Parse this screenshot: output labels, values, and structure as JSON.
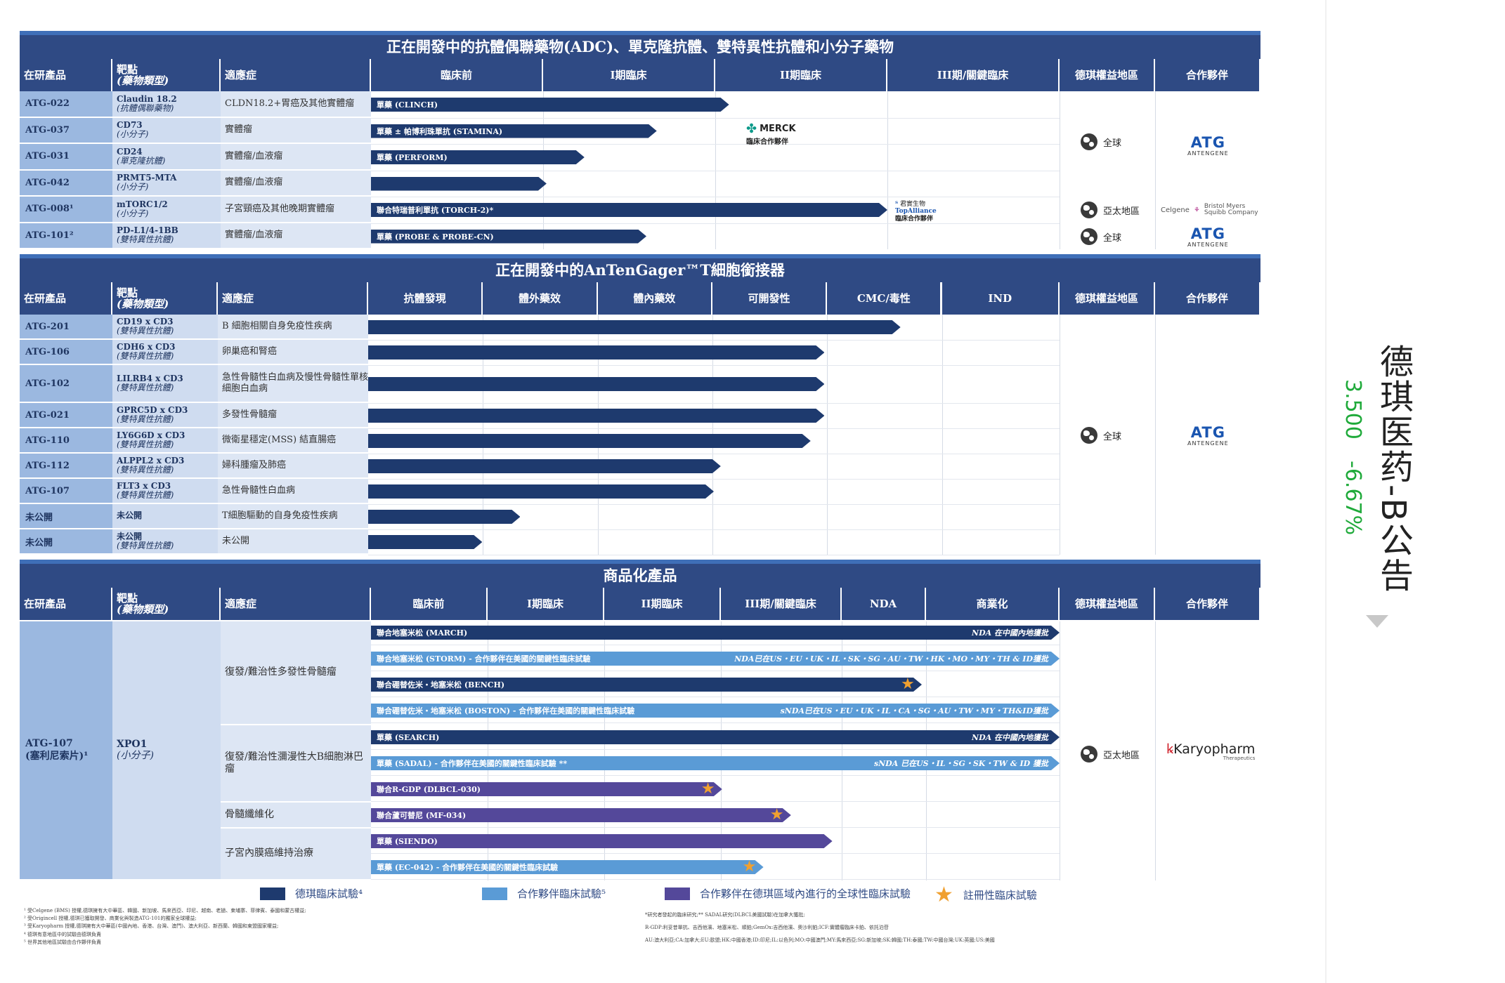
{
  "section1": {
    "title": "正在開發中的抗體偶聯藥物(ADC)、單克隆抗體、雙特異性抗體和小分子藥物",
    "headers": {
      "product": "在研產品",
      "target1": "靶點",
      "target2": "(藥物類型)",
      "indication": "適應症",
      "s1": "臨床前",
      "s2": "I期臨床",
      "s3": "II期臨床",
      "s4": "III期/關鍵臨床",
      "region": "德琪權益地區",
      "partner": "合作夥伴"
    },
    "rows": [
      {
        "id": "ATG-022",
        "t1": "Claudin 18.2",
        "t2": "(抗體偶聯藥物)",
        "ind": "CLDN18.2+胃癌及其他實體瘤",
        "bar": "單藥 (CLINCH)",
        "end": 0.52
      },
      {
        "id": "ATG-037",
        "t1": "CD73",
        "t2": "(小分子)",
        "ind": "實體瘤",
        "bar": "單藥 ± 帕博利珠單抗 (STAMINA)",
        "end": 0.415
      },
      {
        "id": "ATG-031",
        "t1": "CD24",
        "t2": "(單克隆抗體)",
        "ind": "實體瘤/血液瘤",
        "bar": "單藥 (PERFORM)",
        "end": 0.31
      },
      {
        "id": "ATG-042",
        "t1": "PRMT5-MTA",
        "t2": "(小分子)",
        "ind": "實體瘤/血液瘤",
        "bar": "",
        "end": 0.255
      },
      {
        "id": "ATG-008¹",
        "t1": "mTORC1/2",
        "t2": "(小分子)",
        "ind": "子宮頸癌及其他晚期實體瘤",
        "bar": "聯合特瑞普利單抗 (TORCH-2)*",
        "end": 0.75
      },
      {
        "id": "ATG-101²",
        "t1": "PD-L1/4-1BB",
        "t2": "(雙特異性抗體)",
        "ind": "實體瘤/血液瘤",
        "bar": "單藥 (PROBE & PROBE-CN)",
        "end": 0.4
      }
    ],
    "merck": {
      "name": "MERCK",
      "note": "臨床合作夥伴"
    },
    "topalliance": {
      "name": "君實生物",
      "sub": "TopAlliance",
      "note": "臨床合作夥伴"
    },
    "regions": [
      "全球",
      "亞太地區",
      "全球"
    ],
    "partners": {
      "antengene": "ANTENGENE",
      "celgene": "Celgene",
      "bms": "Bristol Myers Squibb Company"
    }
  },
  "section2": {
    "title": "正在開發中的AnTenGager™T細胞銜接器",
    "headers": {
      "product": "在研產品",
      "target1": "靶點",
      "target2": "(藥物類型)",
      "indication": "適應症",
      "s1": "抗體發現",
      "s2": "體外藥效",
      "s3": "體內藥效",
      "s4": "可開發性",
      "s5": "CMC/毒性",
      "s6": "IND",
      "region": "德琪權益地區",
      "partner": "合作夥伴"
    },
    "rows": [
      {
        "id": "ATG-201",
        "t1": "CD19 x CD3",
        "t2": "(雙特異性抗體)",
        "ind": "B 細胞相關自身免疫性疾病",
        "end": 0.77
      },
      {
        "id": "ATG-106",
        "t1": "CDH6 x CD3",
        "t2": "(雙特異性抗體)",
        "ind": "卵巢癌和腎癌",
        "end": 0.66
      },
      {
        "id": "ATG-102",
        "t1": "LILRB4 x CD3",
        "t2": "(雙特異性抗體)",
        "ind": "急性骨髓性白血病及慢性骨髓性單核細胞白血病",
        "end": 0.66
      },
      {
        "id": "ATG-021",
        "t1": "GPRC5D x CD3",
        "t2": "(雙特異性抗體)",
        "ind": "多發性骨髓瘤",
        "end": 0.66
      },
      {
        "id": "ATG-110",
        "t1": "LY6G6D x CD3",
        "t2": "(雙特異性抗體)",
        "ind": "微衛星穩定(MSS) 結直腸癌",
        "end": 0.64
      },
      {
        "id": "ATG-112",
        "t1": "ALPPL2 x CD3",
        "t2": "(雙特異性抗體)",
        "ind": "婦科腫瘤及肺癌",
        "end": 0.51
      },
      {
        "id": "ATG-107",
        "t1": "FLT3 x CD3",
        "t2": "(雙特異性抗體)",
        "ind": "急性骨髓性白血病",
        "end": 0.5
      },
      {
        "id": "未公開",
        "t1": "未公開",
        "t2": "",
        "ind": "T細胞驅動的自身免疫性疾病",
        "end": 0.22
      },
      {
        "id": "未公開",
        "t1": "未公開",
        "t2": "(雙特異性抗體)",
        "ind": "未公開",
        "end": 0.165
      }
    ],
    "region": "全球",
    "partner": "ANTENGENE"
  },
  "section3": {
    "title": "商品化產品",
    "headers": {
      "product": "在研產品",
      "target1": "靶點",
      "target2": "(藥物類型)",
      "indication": "適應症",
      "s1": "臨床前",
      "s2": "I期臨床",
      "s3": "II期臨床",
      "s4": "III期/關鍵臨床",
      "s5": "NDA",
      "s6": "商業化",
      "region": "德琪權益地區",
      "partner": "合作夥伴"
    },
    "product": "ATG-107",
    "product2": "(塞利尼索片)¹",
    "target": "XPO1",
    "target_type": "(小分子)",
    "indications": [
      "復發/難治性多發性骨髓瘤",
      "復發/難治性瀰漫性大B細胞淋巴瘤",
      "骨髓纖維化",
      "子宮內膜癌維持治療"
    ],
    "bars": [
      {
        "label": "聯合地塞米松 (MARCH)",
        "right": "NDA 在中國內地獲批",
        "color": "d",
        "end": 1.0,
        "star": false
      },
      {
        "label": "聯合地塞米松 (STORM) - 合作夥伴在美國的關鍵性臨床試驗",
        "right": "NDA已在US・EU・UK・IL・SK・SG・AU・TW・HK・MO・MY・TH & ID獲批",
        "color": "l",
        "end": 1.0,
        "star": false
      },
      {
        "label": "聯合硼替佐米・地塞米松 (BENCH)",
        "right": "",
        "color": "d",
        "end": 0.8,
        "star": true
      },
      {
        "label": "聯合硼替佐米・地塞米松 (BOSTON) - 合作夥伴在美國的關鍵性臨床試驗",
        "right": "sNDA已在US・EU・UK・IL・CA・SG・AU・TW・MY・TH&ID獲批",
        "color": "l",
        "end": 1.0,
        "star": false
      },
      {
        "label": "單藥 (SEARCH)",
        "right": "NDA 在中國內地獲批",
        "color": "d",
        "end": 1.0,
        "star": false
      },
      {
        "label": "單藥 (SADAL) - 合作夥伴在美國的關鍵性臨床試驗 **",
        "right": "sNDA 已在US・IL・SG・SK・TW & ID 獲批",
        "color": "l",
        "end": 1.0,
        "star": false
      },
      {
        "label": "聯合R-GDP (DLBCL-030)",
        "right": "",
        "color": "p",
        "end": 0.51,
        "star": true
      },
      {
        "label": "聯合蘆可替尼 (MF-034)",
        "right": "",
        "color": "p",
        "end": 0.61,
        "star": true
      },
      {
        "label": "單藥 (SIENDO)",
        "right": "",
        "color": "p",
        "end": 0.67,
        "star": false
      },
      {
        "label": "單藥 (EC-042) - 合作夥伴在美國的關鍵性臨床試驗",
        "right": "",
        "color": "l",
        "end": 0.57,
        "star": true
      }
    ],
    "region": "亞太地區",
    "partner": "Karyopharm",
    "partner_sub": "Therapeutics"
  },
  "legend": [
    "德琪臨床試驗⁴",
    "合作夥伴臨床試驗⁵",
    "合作夥伴在德琪區域內進行的全球性臨床試驗",
    "註冊性臨床試驗"
  ],
  "footnotes_left": [
    "¹ 受Celgene (BMS) 授權,德琪擁有大中華區、韓國、新加坡、馬來西亞、印尼、越南、老撾、柬埔寨、菲律賓、泰國和蒙古權益;",
    "² 受Origincell 授權,德琪已獲取開發、商業化與製造ATG-101的獨家全球權益;",
    "³ 受Karyopharm 授權,德琪擁有大中華區(中國內地、香港、台灣、澳門)、澳大利亞、新西蘭、韓國和東盟國家權益;",
    "⁴ 德琪有意地區中的試驗由德琪負責",
    "⁵ 世界其他地區試驗由合作夥伴負責"
  ],
  "footnotes_right": [
    "*研究者發起的臨床研究;** SADAL研究(DLBCL美國試驗)在加拿大獲批;",
    "R-GDP:利妥昔單抗、吉西他濱、地塞米松、順鉑;GemOx:吉西他濱、奧沙利鉑;ICF:實體瘤臨床卡鉑、依託泊苷",
    "AU:澳大利亞;CA:加拿大;EU:歐盟;HK:中國香港;ID:印尼;IL:以色列;MO:中國澳門;MY:馬來西亞;SG:新加坡;SK:韓國;TH:泰國;TW:中國台灣;UK:英國;US:美國"
  ],
  "sidebar": {
    "title": "德琪医药-B公告",
    "price": "3.500",
    "change": "-6.67%"
  }
}
